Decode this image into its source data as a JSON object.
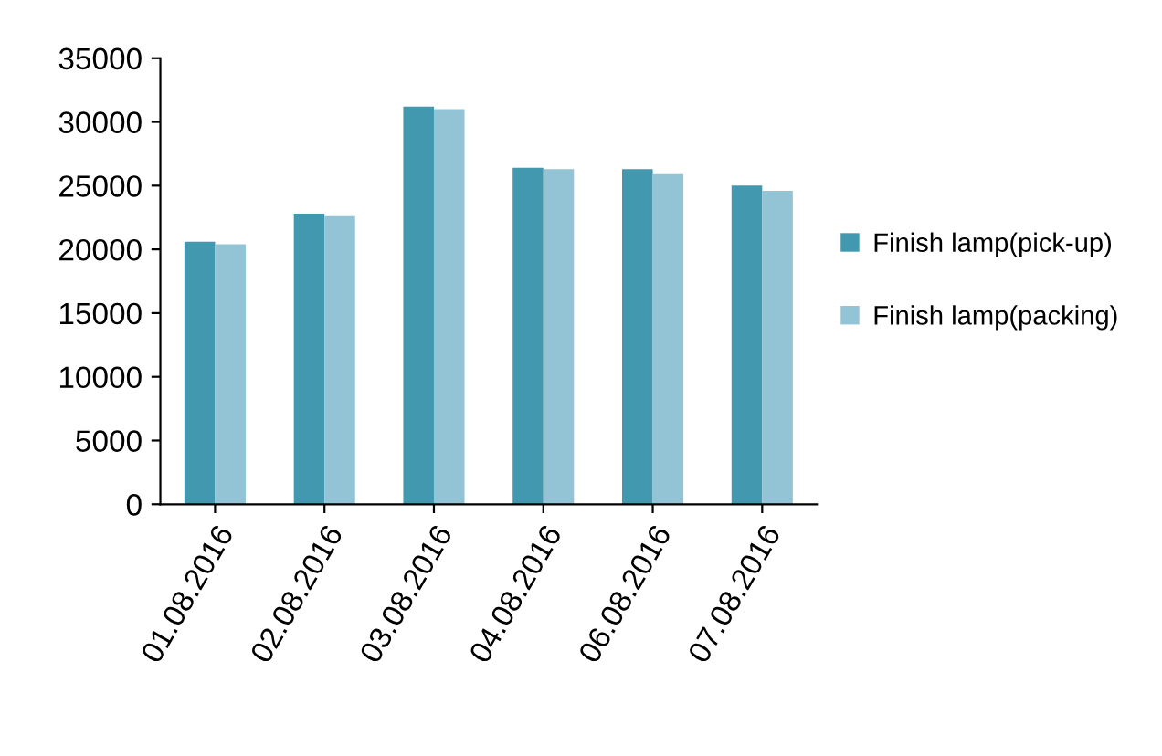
{
  "chart_data": {
    "type": "bar",
    "categories": [
      "01.08.2016",
      "02.08.2016",
      "03.08.2016",
      "04.08.2016",
      "06.08.2016",
      "07.08.2016"
    ],
    "series": [
      {
        "name": "Finish lamp(pick-up)",
        "color": "#4298ae",
        "values": [
          20600,
          22800,
          31200,
          26400,
          26300,
          25000
        ]
      },
      {
        "name": "Finish lamp(packing)",
        "color": "#93c4d6",
        "values": [
          20400,
          22600,
          31000,
          26300,
          25900,
          24600
        ]
      }
    ],
    "ylim": [
      0,
      35000
    ],
    "yticks": [
      0,
      5000,
      10000,
      15000,
      20000,
      25000,
      30000,
      35000
    ],
    "grid": false,
    "legend": "right"
  }
}
